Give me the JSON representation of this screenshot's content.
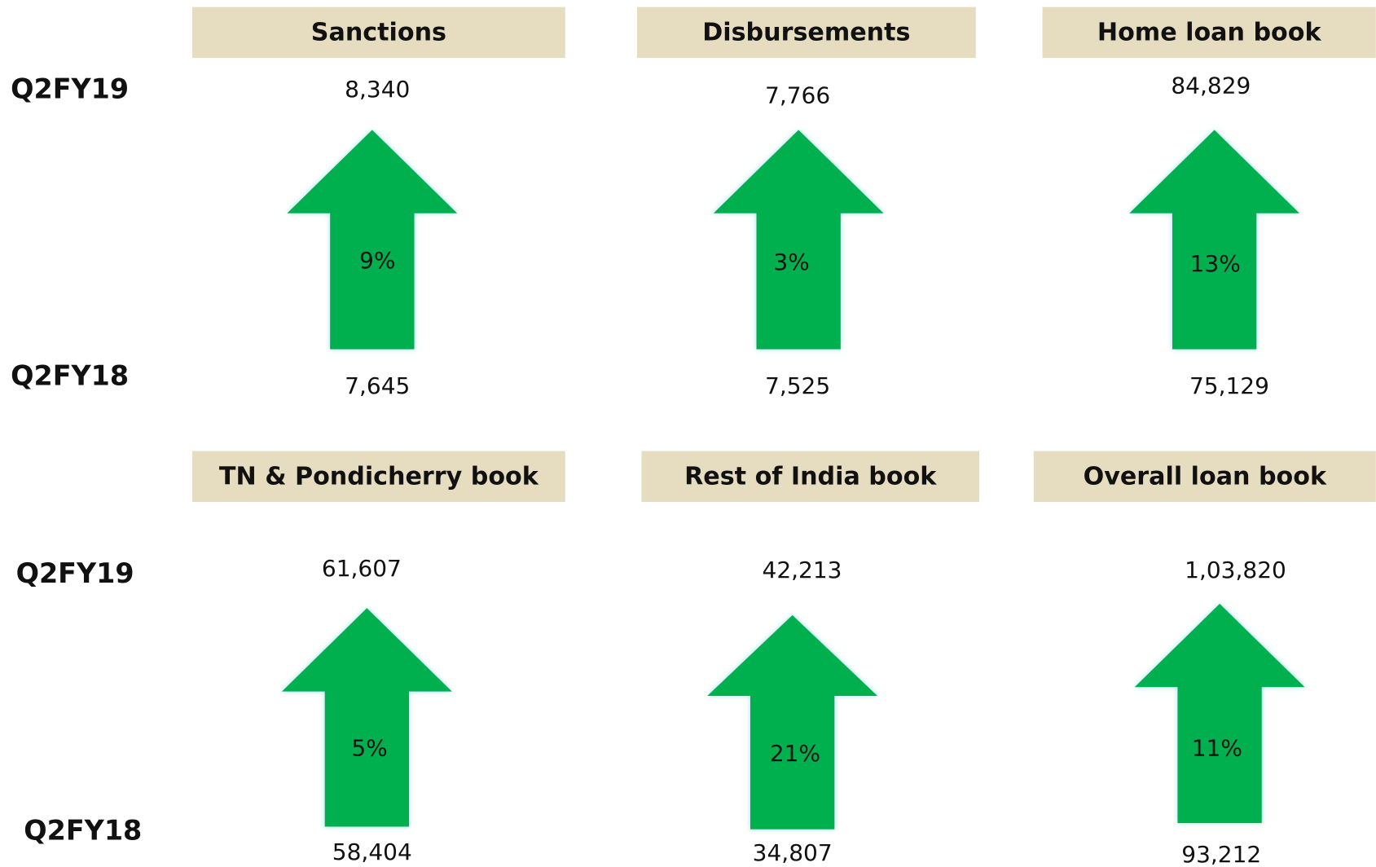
{
  "row_labels": {
    "top": {
      "current": "Q2FY19",
      "previous": "Q2FY18"
    },
    "bottom": {
      "current": "Q2FY19",
      "previous": "Q2FY18"
    }
  },
  "panels": [
    {
      "title": "Sanctions",
      "current": "8,340",
      "growth": "9%",
      "previous": "7,645"
    },
    {
      "title": "Disbursements",
      "current": "7,766",
      "growth": "3%",
      "previous": "7,525"
    },
    {
      "title": "Home loan book",
      "current": "84,829",
      "growth": "13%",
      "previous": "75,129"
    },
    {
      "title": "TN & Pondicherry book",
      "current": "61,607",
      "growth": "5%",
      "previous": "58,404"
    },
    {
      "title": "Rest of India book",
      "current": "42,213",
      "growth": "21%",
      "previous": "34,807"
    },
    {
      "title": "Overall loan book",
      "current": "1,03,820",
      "growth": "11%",
      "previous": "93,212"
    }
  ]
}
